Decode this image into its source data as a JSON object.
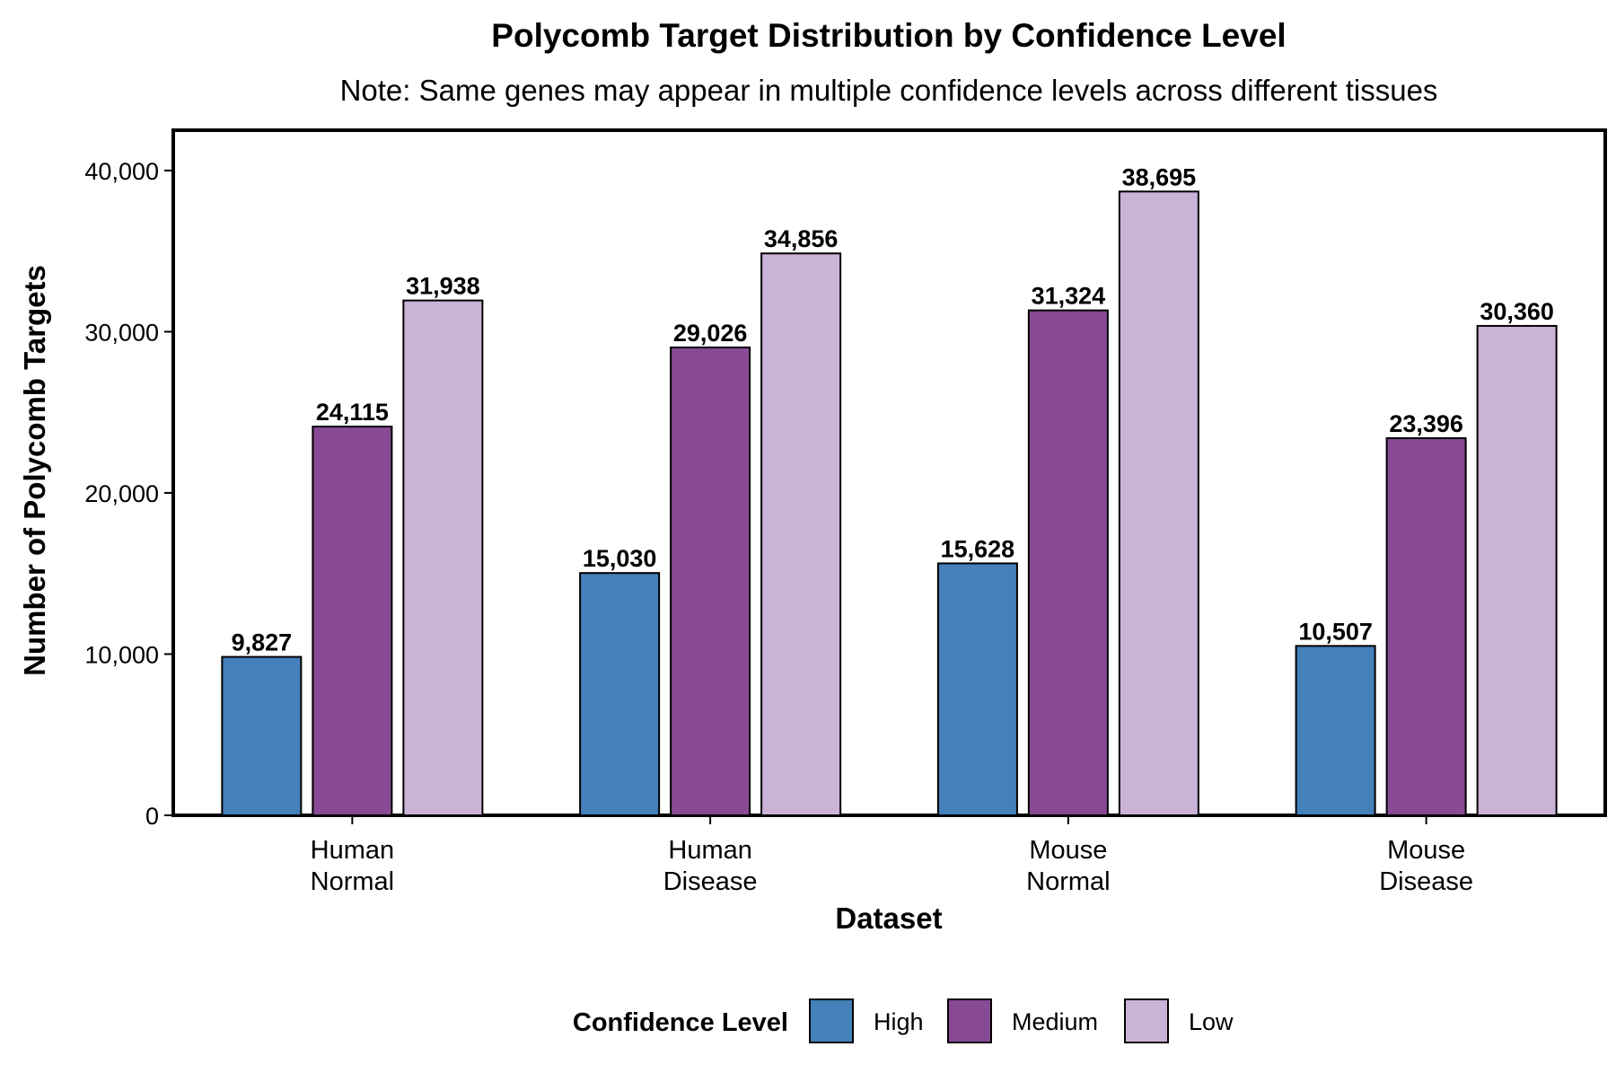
{
  "chart_data": {
    "type": "bar",
    "title": "Polycomb Target Distribution by Confidence Level",
    "subtitle": "Note: Same genes may appear in multiple confidence levels across different tissues",
    "xlabel": "Dataset",
    "ylabel": "Number of Polycomb Targets",
    "categories": [
      [
        "Human",
        "Normal"
      ],
      [
        "Human",
        "Disease"
      ],
      [
        "Mouse",
        "Normal"
      ],
      [
        "Mouse",
        "Disease"
      ]
    ],
    "series": [
      {
        "name": "High",
        "color": "#4480BA",
        "values": [
          9827,
          15030,
          15628,
          10507
        ],
        "labels": [
          "9,827",
          "15,030",
          "15,628",
          "10,507"
        ]
      },
      {
        "name": "Medium",
        "color": "#884A94",
        "values": [
          24115,
          29026,
          31324,
          23396
        ],
        "labels": [
          "24,115",
          "29,026",
          "31,324",
          "23,396"
        ]
      },
      {
        "name": "Low",
        "color": "#CBB2D7",
        "values": [
          31938,
          34856,
          38695,
          30360
        ],
        "labels": [
          "31,938",
          "34,856",
          "38,695",
          "30,360"
        ]
      }
    ],
    "ylim": [
      0,
      42500
    ],
    "yticks": [
      0,
      10000,
      20000,
      30000,
      40000
    ],
    "ytick_labels": [
      "0",
      "10,000",
      "20,000",
      "30,000",
      "40,000"
    ],
    "legend": {
      "title": "Confidence Level",
      "position": "bottom"
    },
    "grid": false
  }
}
